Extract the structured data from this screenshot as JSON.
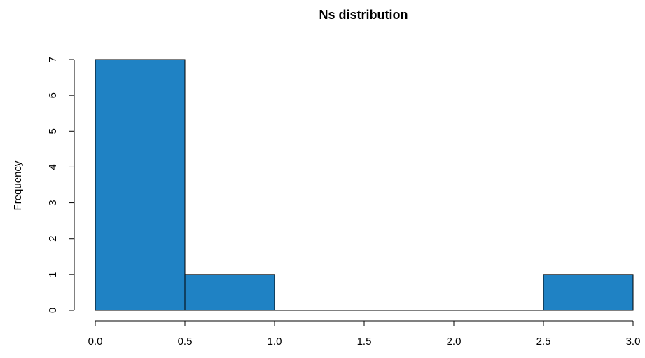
{
  "chart_data": {
    "type": "bar",
    "subtype": "histogram",
    "title": "Ns distribution",
    "xlabel": "",
    "ylabel": "Frequency",
    "bins": [
      {
        "from": 0.0,
        "to": 0.5,
        "count": 7
      },
      {
        "from": 0.5,
        "to": 1.0,
        "count": 1
      },
      {
        "from": 1.0,
        "to": 1.5,
        "count": 0
      },
      {
        "from": 1.5,
        "to": 2.0,
        "count": 0
      },
      {
        "from": 2.0,
        "to": 2.5,
        "count": 0
      },
      {
        "from": 2.5,
        "to": 3.0,
        "count": 1
      }
    ],
    "xlim": [
      0,
      3
    ],
    "ylim": [
      0,
      7
    ],
    "x_ticks": [
      "0.0",
      "0.5",
      "1.0",
      "1.5",
      "2.0",
      "2.5",
      "3.0"
    ],
    "y_ticks": [
      "0",
      "1",
      "2",
      "3",
      "4",
      "5",
      "6",
      "7"
    ],
    "bar_color": "#1f82c4",
    "grid": false,
    "legend": "none"
  }
}
